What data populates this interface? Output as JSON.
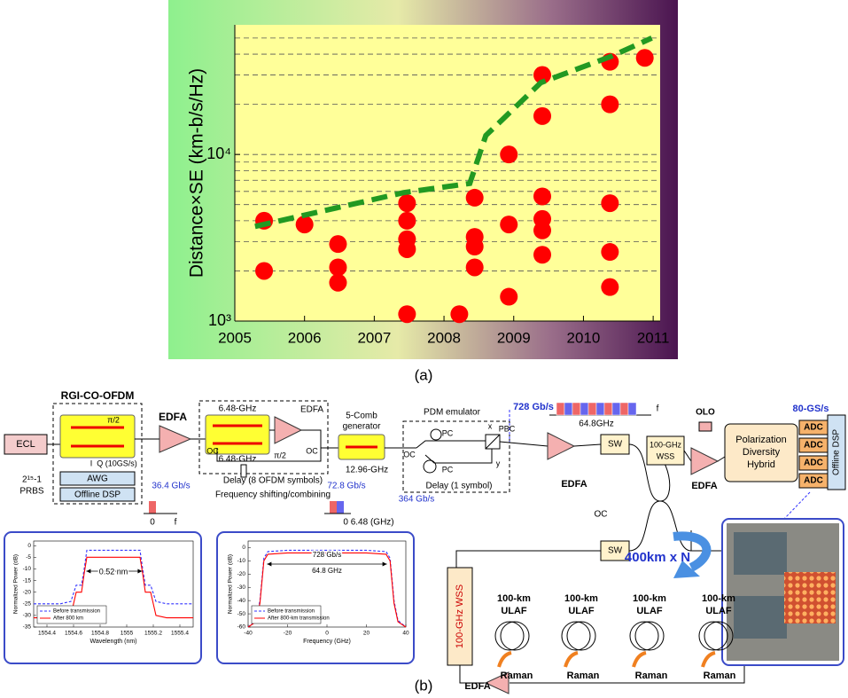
{
  "chart_data": [
    {
      "type": "scatter",
      "caption": "(a)",
      "ylabel": "Distance×SE (km-b/s/Hz)",
      "x": [
        2005.42,
        2005.42,
        2006.0,
        2006.48,
        2006.48,
        2006.48,
        2007.47,
        2007.47,
        2007.47,
        2007.47,
        2007.47,
        2008.22,
        2008.44,
        2008.44,
        2008.44,
        2008.44,
        2008.93,
        2008.93,
        2008.93,
        2009.41,
        2009.41,
        2009.41,
        2009.41,
        2009.41,
        2009.41,
        2010.38,
        2010.38,
        2010.38,
        2010.38,
        2010.38,
        2010.88
      ],
      "values": [
        4000,
        2000,
        3800,
        2900,
        2100,
        1700,
        5100,
        4000,
        3100,
        2700,
        1100,
        1100,
        5500,
        3200,
        2800,
        2100,
        3800,
        1400,
        10000,
        30000,
        17000,
        5600,
        4100,
        3500,
        2500,
        36000,
        20000,
        5100,
        2600,
        1600,
        38000
      ],
      "color": "#ff0000",
      "trend": {
        "x": [
          2005.29,
          2007.42,
          2008.37,
          2008.6,
          2009.39,
          2010.41,
          2010.98
        ],
        "values": [
          3700,
          5900,
          6700,
          13000,
          27000,
          39000,
          50000
        ],
        "color": "#229922"
      },
      "xlim": [
        2005,
        2011.1
      ],
      "ylim": [
        1000,
        60000
      ],
      "log_y": true,
      "xticks": [
        2005,
        2006,
        2007,
        2008,
        2009,
        2010,
        2011
      ],
      "yticks": [
        {
          "value": 1000,
          "label": "10³"
        },
        {
          "value": 10000,
          "label": "10⁴"
        }
      ],
      "ygrid": [
        2000,
        3000,
        4000,
        5000,
        6000,
        7000,
        8000,
        9000,
        10000,
        20000,
        30000,
        40000,
        50000
      ],
      "grid": true
    },
    {
      "type": "line",
      "xlabel": "Wavelength (nm)",
      "ylabel": "Normalized Power (dB)",
      "legend": "lower left",
      "x": [
        1554.3,
        1554.5,
        1554.58,
        1554.62,
        1554.66,
        1554.68,
        1554.7,
        1555.0,
        1555.1,
        1555.12,
        1555.14,
        1555.18,
        1555.22,
        1555.3,
        1555.5
      ],
      "series": [
        {
          "name": "Before transmission",
          "color": "#3333ff",
          "values": [
            -25,
            -25,
            -24,
            -17,
            -17,
            -10,
            -2,
            -2,
            -2,
            -10,
            -17,
            -17,
            -24,
            -25,
            -25
          ]
        },
        {
          "name": "After 800 km",
          "color": "#ff0000",
          "values": [
            -31,
            -31,
            -30,
            -20,
            -20,
            -12,
            -5,
            -5,
            -5,
            -12,
            -20,
            -20,
            -30,
            -31,
            -31
          ]
        }
      ],
      "annotations": [
        "0.52 nm"
      ],
      "xlim": [
        1554.3,
        1555.5
      ],
      "ylim": [
        -35,
        2
      ],
      "xticks": [
        1554.4,
        1554.6,
        1554.8,
        1555,
        1555.2,
        1555.4
      ],
      "yticks": [
        0,
        -5,
        -10,
        -15,
        -20,
        -25,
        -30,
        -35
      ]
    },
    {
      "type": "line",
      "xlabel": "Frequency (GHz)",
      "ylabel": "Normalized Power (dB)",
      "legend": "lower left",
      "x": [
        -40,
        -36,
        -34,
        -32,
        -30,
        -20,
        0,
        20,
        30,
        32,
        34,
        36,
        40
      ],
      "series": [
        {
          "name": "Before transmission",
          "color": "#3333ff",
          "values": [
            -60,
            -55,
            -40,
            -8,
            -3,
            -2,
            -2,
            -2,
            -3,
            -8,
            -40,
            -55,
            -60
          ]
        },
        {
          "name": "After 800-km transmission",
          "color": "#ff0000",
          "values": [
            -60,
            -56,
            -42,
            -10,
            -5,
            -4,
            -4,
            -4,
            -5,
            -10,
            -42,
            -56,
            -60
          ]
        }
      ],
      "annotations": [
        "728 Gb/s",
        "64.8 GHz"
      ],
      "xlim": [
        -40,
        40
      ],
      "ylim": [
        -60,
        5
      ],
      "xticks": [
        -40,
        -20,
        0,
        20,
        40
      ],
      "yticks": [
        0,
        -10,
        -20,
        -30,
        -40,
        -50,
        -60
      ]
    }
  ],
  "diagram": {
    "labels": [
      "RGI-CO-OFDM",
      "ECL",
      "π/2",
      "I",
      "Q (10GS/s)",
      "AWG",
      "Offline DSP",
      "2¹⁵-1",
      "PRBS",
      "EDFA",
      "6.48-GHz",
      "6.48-GHz",
      "π/2",
      "EDFA",
      "OC",
      "OC",
      "Delay (8 OFDM symbols)",
      "Frequency shifting/combining",
      "5-Comb",
      "generator",
      "12.96-GHz",
      "PDM emulator",
      "PC",
      "PC",
      "PBC",
      "x",
      "y",
      "OC",
      "Delay (1 symbol)",
      "36.4 Gb/s",
      "0",
      "f",
      "72.8 Gb/s",
      "364 Gb/s",
      "0 6.48 (GHz)",
      "728 Gb/s",
      "64.8GHz",
      "f",
      "EDFA",
      "SW",
      "SW",
      "OC",
      "100-GHz",
      "WSS",
      "EDFA",
      "OLO",
      "Polarization",
      "Diversity",
      "Hybrid",
      "80-GS/s",
      "ADC",
      "ADC",
      "ADC",
      "ADC",
      "Offline DSP",
      "400km x N",
      "100-GHz WSS",
      "100-km",
      "100-km",
      "100-km",
      "100-km",
      "ULAF",
      "ULAF",
      "ULAF",
      "ULAF",
      "Raman",
      "Raman",
      "Raman",
      "Raman",
      "EDFA",
      "(b)"
    ]
  }
}
